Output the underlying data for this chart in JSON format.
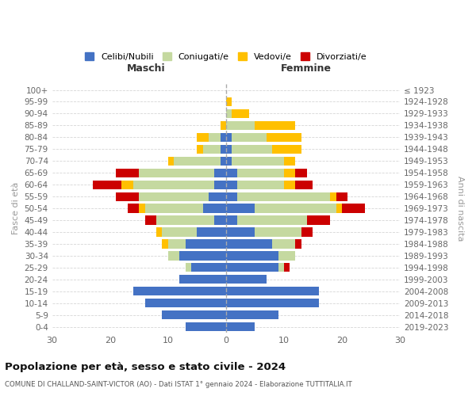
{
  "age_groups": [
    "100+",
    "95-99",
    "90-94",
    "85-89",
    "80-84",
    "75-79",
    "70-74",
    "65-69",
    "60-64",
    "55-59",
    "50-54",
    "45-49",
    "40-44",
    "35-39",
    "30-34",
    "25-29",
    "20-24",
    "15-19",
    "10-14",
    "5-9",
    "0-4"
  ],
  "birth_years": [
    "≤ 1923",
    "1924-1928",
    "1929-1933",
    "1934-1938",
    "1939-1943",
    "1944-1948",
    "1949-1953",
    "1954-1958",
    "1959-1963",
    "1964-1968",
    "1969-1973",
    "1974-1978",
    "1979-1983",
    "1984-1988",
    "1989-1993",
    "1994-1998",
    "1999-2003",
    "2004-2008",
    "2009-2013",
    "2014-2018",
    "2019-2023"
  ],
  "maschi": {
    "celibi": [
      0,
      0,
      0,
      0,
      1,
      1,
      1,
      2,
      2,
      3,
      4,
      2,
      5,
      7,
      8,
      6,
      8,
      16,
      14,
      11,
      7
    ],
    "coniugati": [
      0,
      0,
      0,
      0,
      2,
      3,
      8,
      13,
      14,
      12,
      10,
      10,
      6,
      3,
      2,
      1,
      0,
      0,
      0,
      0,
      0
    ],
    "vedovi": [
      0,
      0,
      0,
      1,
      2,
      1,
      1,
      0,
      2,
      0,
      1,
      0,
      1,
      1,
      0,
      0,
      0,
      0,
      0,
      0,
      0
    ],
    "divorziati": [
      0,
      0,
      0,
      0,
      0,
      0,
      0,
      4,
      5,
      4,
      2,
      2,
      0,
      0,
      0,
      0,
      0,
      0,
      0,
      0,
      0
    ]
  },
  "femmine": {
    "celibi": [
      0,
      0,
      0,
      0,
      1,
      1,
      1,
      2,
      2,
      2,
      5,
      2,
      5,
      8,
      9,
      9,
      7,
      16,
      16,
      9,
      5
    ],
    "coniugati": [
      0,
      0,
      1,
      5,
      6,
      7,
      9,
      8,
      8,
      16,
      14,
      12,
      8,
      4,
      3,
      1,
      0,
      0,
      0,
      0,
      0
    ],
    "vedovi": [
      0,
      1,
      3,
      7,
      6,
      5,
      2,
      2,
      2,
      1,
      1,
      0,
      0,
      0,
      0,
      0,
      0,
      0,
      0,
      0,
      0
    ],
    "divorziati": [
      0,
      0,
      0,
      0,
      0,
      0,
      0,
      2,
      3,
      2,
      4,
      4,
      2,
      1,
      0,
      1,
      0,
      0,
      0,
      0,
      0
    ]
  },
  "colors": {
    "celibi": "#4472c4",
    "coniugati": "#c5d9a0",
    "vedovi": "#ffc000",
    "divorziati": "#cc0000"
  },
  "xlim": 30,
  "title": "Popolazione per età, sesso e stato civile - 2024",
  "subtitle": "COMUNE DI CHALLAND-SAINT-VICTOR (AO) - Dati ISTAT 1° gennaio 2024 - Elaborazione TUTTITALIA.IT",
  "ylabel": "Fasce di età",
  "ylabel_right": "Anni di nascita",
  "legend_labels": [
    "Celibi/Nubili",
    "Coniugati/e",
    "Vedovi/e",
    "Divorziati/e"
  ],
  "maschi_label": "Maschi",
  "femmine_label": "Femmine",
  "bg_color": "#ffffff",
  "grid_color": "#cccccc"
}
